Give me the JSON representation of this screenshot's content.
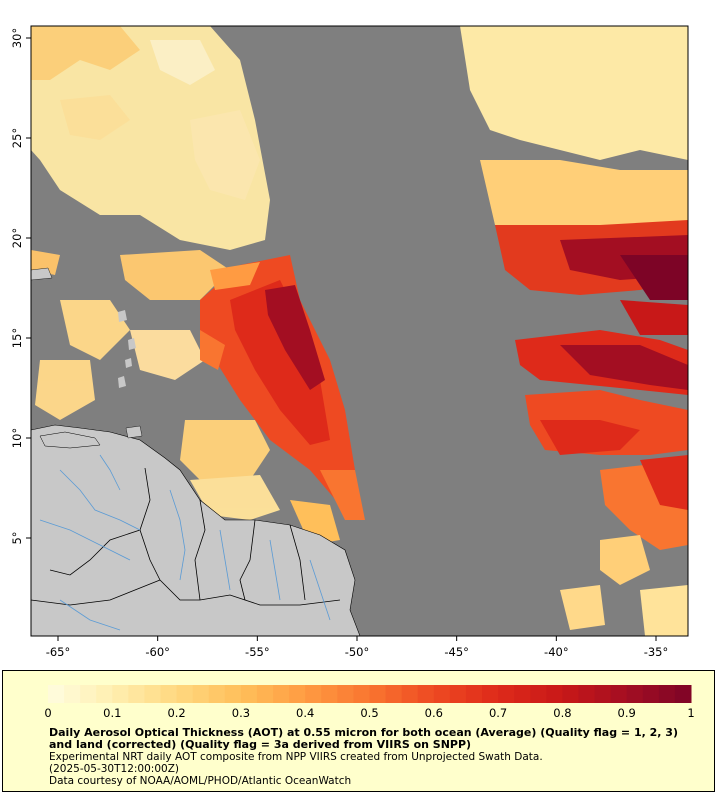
{
  "map": {
    "lon_ticks": [
      {
        "value": -65,
        "label": "-65°"
      },
      {
        "value": -60,
        "label": "-60°"
      },
      {
        "value": -55,
        "label": "-55°"
      },
      {
        "value": -50,
        "label": "-50°"
      },
      {
        "value": -45,
        "label": "-45°"
      },
      {
        "value": -40,
        "label": "-40°"
      },
      {
        "value": -35,
        "label": "-35°"
      }
    ],
    "lat_ticks": [
      {
        "value": 5,
        "label": "5°"
      },
      {
        "value": 10,
        "label": "10°"
      },
      {
        "value": 15,
        "label": "15°"
      },
      {
        "value": 20,
        "label": "20°"
      },
      {
        "value": 25,
        "label": "25°"
      },
      {
        "value": 30,
        "label": "30°"
      }
    ],
    "colors": {
      "no_data": "#7f7f7f",
      "land": "#c8c8c8",
      "rivers": "#5b9bd5",
      "borders": "#000000"
    }
  },
  "legend": {
    "ticks": [
      "0",
      "0.1",
      "0.2",
      "0.3",
      "0.4",
      "0.5",
      "0.6",
      "0.7",
      "0.8",
      "0.9",
      "1"
    ],
    "colors": [
      "#fffde0",
      "#ffefb0",
      "#ffd880",
      "#ffbf5a",
      "#ff9b42",
      "#f97530",
      "#ee4a22",
      "#de2a1a",
      "#c81818",
      "#a30e22",
      "#7d0426"
    ],
    "title": "Daily Aerosol Optical Thickness (AOT) at 0.55 micron for both ocean (Average) (Quality flag = 1, 2, 3) and land (corrected) (Quality flag = 3a derived from VIIRS on SNPP)",
    "subtitle_line1": "Experimental NRT daily AOT composite from NPP VIIRS created from Unprojected Swath Data.",
    "subtitle_line2": "(2025-05-30T12:00:00Z)",
    "credit": "Data courtesy of NOAA/AOML/PHOD/Atlantic OceanWatch"
  }
}
